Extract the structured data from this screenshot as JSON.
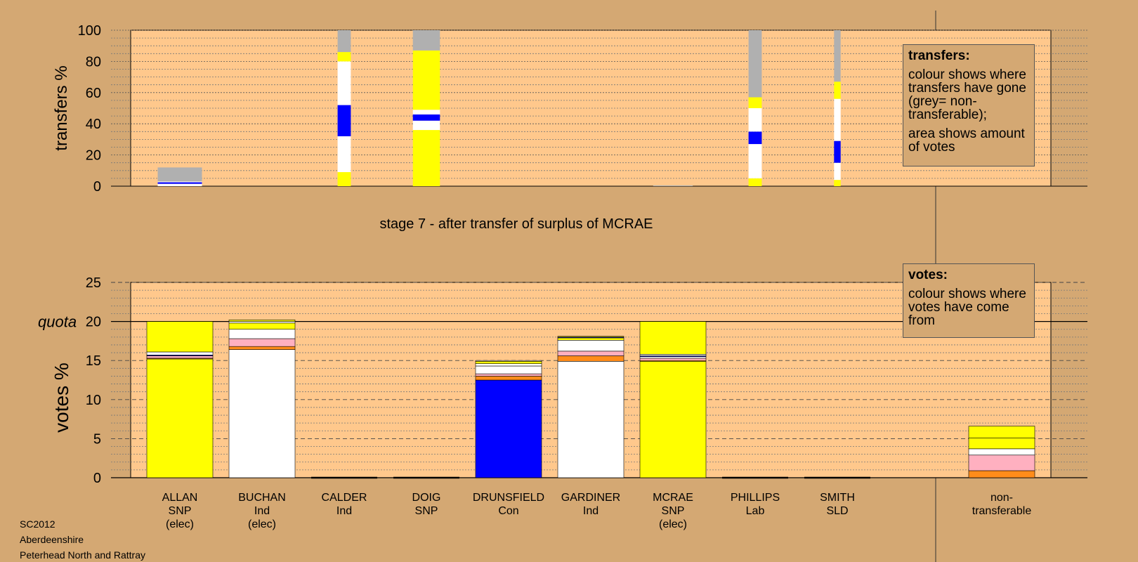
{
  "stage_title": "stage 7 - after transfer of surplus of MCRAE",
  "source_lines": [
    "SC2012",
    "Aberdeenshire",
    "Peterhead North and Rattray"
  ],
  "transfers_legend": {
    "title": "transfers:",
    "p1": "colour shows where transfers have gone (grey= non-transferable);",
    "p2": "area shows amount of votes"
  },
  "votes_legend": {
    "title": "votes:",
    "p1": "colour shows where votes have come from"
  },
  "colors": {
    "background": "#D4A873",
    "plot_bg": "#FFC88C",
    "SNP": "#FFFF00",
    "Ind": "#FFFFFF",
    "Con": "#0000FF",
    "Lab": "#FF8C1A",
    "SLD": "#FFB0C0",
    "nontransferable": "#B0B0B0"
  },
  "candidates": [
    {
      "name": "ALLAN",
      "party": "SNP",
      "note": "(elec)"
    },
    {
      "name": "BUCHAN",
      "party": "Ind",
      "note": "(elec)"
    },
    {
      "name": "CALDER",
      "party": "Ind",
      "note": ""
    },
    {
      "name": "DOIG",
      "party": "SNP",
      "note": ""
    },
    {
      "name": "DRUNSFIELD",
      "party": "Con",
      "note": ""
    },
    {
      "name": "GARDINER",
      "party": "Ind",
      "note": ""
    },
    {
      "name": "MCRAE",
      "party": "SNP",
      "note": "(elec)"
    },
    {
      "name": "PHILLIPS",
      "party": "Lab",
      "note": ""
    },
    {
      "name": "SMITH",
      "party": "SLD",
      "note": ""
    }
  ],
  "nontransferable_label": [
    "non-",
    "transferable"
  ],
  "chart_data": [
    {
      "type": "bar",
      "stacked": true,
      "ylabel": "transfers %",
      "ylim": [
        0,
        100
      ],
      "yticks": [
        0,
        20,
        40,
        60,
        80,
        100
      ],
      "grid": true,
      "categories": [
        "ALLAN",
        "BUCHAN",
        "CALDER",
        "DOIG",
        "DRUNSFIELD",
        "GARDINER",
        "MCRAE",
        "PHILLIPS",
        "SMITH"
      ],
      "bar_width_share": [
        0.67,
        0,
        0.2,
        0.41,
        0,
        0,
        0.6,
        0.2,
        0.1
      ],
      "segments": [
        [
          {
            "color": "Ind",
            "value": 1.5
          },
          {
            "color": "Con",
            "value": 1
          },
          {
            "color": "Ind",
            "value": 0.5
          },
          {
            "color": "nontransferable",
            "value": 9
          }
        ],
        [],
        [
          {
            "color": "SNP",
            "value": 9
          },
          {
            "color": "Ind",
            "value": 23
          },
          {
            "color": "Con",
            "value": 20
          },
          {
            "color": "Ind",
            "value": 28
          },
          {
            "color": "SNP",
            "value": 6
          },
          {
            "color": "nontransferable",
            "value": 14
          }
        ],
        [
          {
            "color": "SNP",
            "value": 36
          },
          {
            "color": "Ind",
            "value": 6
          },
          {
            "color": "Con",
            "value": 4
          },
          {
            "color": "Ind",
            "value": 3
          },
          {
            "color": "SNP",
            "value": 38
          },
          {
            "color": "nontransferable",
            "value": 13
          }
        ],
        [],
        [],
        [
          {
            "color": "nontransferable",
            "value": 0.5
          }
        ],
        [
          {
            "color": "SNP",
            "value": 5
          },
          {
            "color": "Ind",
            "value": 22
          },
          {
            "color": "Con",
            "value": 8
          },
          {
            "color": "Ind",
            "value": 15
          },
          {
            "color": "SNP",
            "value": 7
          },
          {
            "color": "nontransferable",
            "value": 43
          }
        ],
        [
          {
            "color": "SNP",
            "value": 4
          },
          {
            "color": "Ind",
            "value": 11
          },
          {
            "color": "Con",
            "value": 14
          },
          {
            "color": "Ind",
            "value": 27
          },
          {
            "color": "SNP",
            "value": 11
          },
          {
            "color": "nontransferable",
            "value": 33
          }
        ]
      ]
    },
    {
      "type": "bar",
      "stacked": true,
      "ylabel": "votes %",
      "ylim": [
        0,
        25
      ],
      "yticks": [
        0,
        5,
        10,
        15,
        20,
        25
      ],
      "quota": 20,
      "quota_label": "quota",
      "grid": true,
      "categories": [
        "ALLAN",
        "BUCHAN",
        "CALDER",
        "DOIG",
        "DRUNSFIELD",
        "GARDINER",
        "MCRAE",
        "PHILLIPS",
        "SMITH",
        "non-transferable"
      ],
      "segments": [
        [
          {
            "color": "SNP",
            "value": 15.2
          },
          {
            "color": "Lab",
            "value": 0.1
          },
          {
            "color": "SLD",
            "value": 0.3
          },
          {
            "color": "Con",
            "value": 0.1
          },
          {
            "color": "Ind",
            "value": 0.4
          },
          {
            "color": "SNP",
            "value": 3.9
          }
        ],
        [
          {
            "color": "Ind",
            "value": 16.4
          },
          {
            "color": "Lab",
            "value": 0.4
          },
          {
            "color": "SLD",
            "value": 1.0
          },
          {
            "color": "Ind",
            "value": 1.2
          },
          {
            "color": "SNP",
            "value": 0.8
          },
          {
            "color": "Ind",
            "value": 0.2
          },
          {
            "color": "SNP",
            "value": 0.2
          }
        ],
        [],
        [],
        [
          {
            "color": "Con",
            "value": 12.5
          },
          {
            "color": "Lab",
            "value": 0.5
          },
          {
            "color": "SLD",
            "value": 0.3
          },
          {
            "color": "Ind",
            "value": 1.0
          },
          {
            "color": "Ind",
            "value": 0.3
          },
          {
            "color": "SNP",
            "value": 0.3
          },
          {
            "color": "Ind",
            "value": 0.1
          }
        ],
        [
          {
            "color": "Ind",
            "value": 14.9
          },
          {
            "color": "Lab",
            "value": 0.7
          },
          {
            "color": "SLD",
            "value": 0.6
          },
          {
            "color": "Ind",
            "value": 1.4
          },
          {
            "color": "SNP",
            "value": 0.3
          },
          {
            "color": "Con",
            "value": 0.1
          },
          {
            "color": "SNP",
            "value": 0.1
          }
        ],
        [
          {
            "color": "SNP",
            "value": 14.9
          },
          {
            "color": "Lab",
            "value": 0.1
          },
          {
            "color": "SLD",
            "value": 0.3
          },
          {
            "color": "Ind",
            "value": 0.2
          },
          {
            "color": "Con",
            "value": 0.1
          },
          {
            "color": "Ind",
            "value": 0.2
          },
          {
            "color": "SNP",
            "value": 4.2
          }
        ],
        [],
        [],
        [
          {
            "color": "Lab",
            "value": 0.9
          },
          {
            "color": "SLD",
            "value": 2.0
          },
          {
            "color": "Ind",
            "value": 0.8
          },
          {
            "color": "SNP",
            "value": 1.4
          },
          {
            "color": "SNP",
            "value": 1.5
          }
        ]
      ]
    }
  ]
}
